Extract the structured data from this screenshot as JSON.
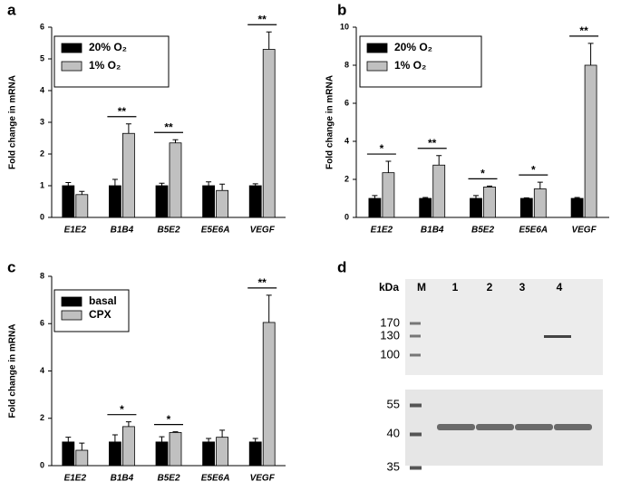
{
  "chart_data": [
    {
      "type": "bar",
      "panel": "a",
      "y_label": "Fold change in mRNA",
      "categories": [
        "E1E2",
        "B1B4",
        "B5E2",
        "E5E6A",
        "VEGF"
      ],
      "series": [
        {
          "name": "20% O₂",
          "color": "#000000",
          "values": [
            1.0,
            1.0,
            1.0,
            1.0,
            1.0
          ],
          "errors": [
            0.1,
            0.2,
            0.08,
            0.12,
            0.06
          ]
        },
        {
          "name": "1% O₂",
          "color": "#c0c0c0",
          "values": [
            0.72,
            2.65,
            2.35,
            0.85,
            5.3
          ],
          "errors": [
            0.1,
            0.3,
            0.1,
            0.2,
            0.55
          ]
        }
      ],
      "significance": [
        null,
        "**",
        "**",
        null,
        "**"
      ],
      "ylim": [
        0,
        6
      ],
      "yticks": [
        0,
        1,
        2,
        3,
        4,
        5,
        6
      ]
    },
    {
      "type": "bar",
      "panel": "b",
      "y_label": "Fold change in mRNA",
      "categories": [
        "E1E2",
        "B1B4",
        "B5E2",
        "E5E6A",
        "VEGF"
      ],
      "series": [
        {
          "name": "20% O₂",
          "color": "#000000",
          "values": [
            1.0,
            1.0,
            1.0,
            1.0,
            1.0
          ],
          "errors": [
            0.15,
            0.05,
            0.15,
            0.03,
            0.05
          ]
        },
        {
          "name": "1% O₂",
          "color": "#c0c0c0",
          "values": [
            2.35,
            2.75,
            1.6,
            1.5,
            8.0
          ],
          "errors": [
            0.6,
            0.5,
            0.05,
            0.35,
            1.15
          ]
        }
      ],
      "significance": [
        "*",
        "**",
        "*",
        "*",
        "**"
      ],
      "ylim": [
        0,
        10
      ],
      "yticks": [
        0,
        2,
        4,
        6,
        8,
        10
      ]
    },
    {
      "type": "bar",
      "panel": "c",
      "y_label": "Fold change in mRNA",
      "categories": [
        "E1E2",
        "B1B4",
        "B5E2",
        "E5E6A",
        "VEGF"
      ],
      "series": [
        {
          "name": "basal",
          "color": "#000000",
          "values": [
            1.0,
            1.0,
            1.0,
            1.0,
            1.0
          ],
          "errors": [
            0.2,
            0.3,
            0.22,
            0.15,
            0.15
          ]
        },
        {
          "name": "CPX",
          "color": "#c0c0c0",
          "values": [
            0.65,
            1.65,
            1.4,
            1.2,
            6.05
          ],
          "errors": [
            0.3,
            0.2,
            0.03,
            0.3,
            1.15
          ]
        }
      ],
      "significance": [
        null,
        "*",
        "*",
        null,
        "**"
      ],
      "ylim": [
        0,
        8
      ],
      "yticks": [
        0,
        2,
        4,
        6,
        8
      ]
    }
  ],
  "blot": {
    "panel": "d",
    "unit": "kDa",
    "lanes": [
      "M",
      "1",
      "2",
      "3",
      "4"
    ],
    "markers_top": [
      170,
      130,
      100
    ],
    "markers_bottom": [
      55,
      40,
      35
    ]
  }
}
